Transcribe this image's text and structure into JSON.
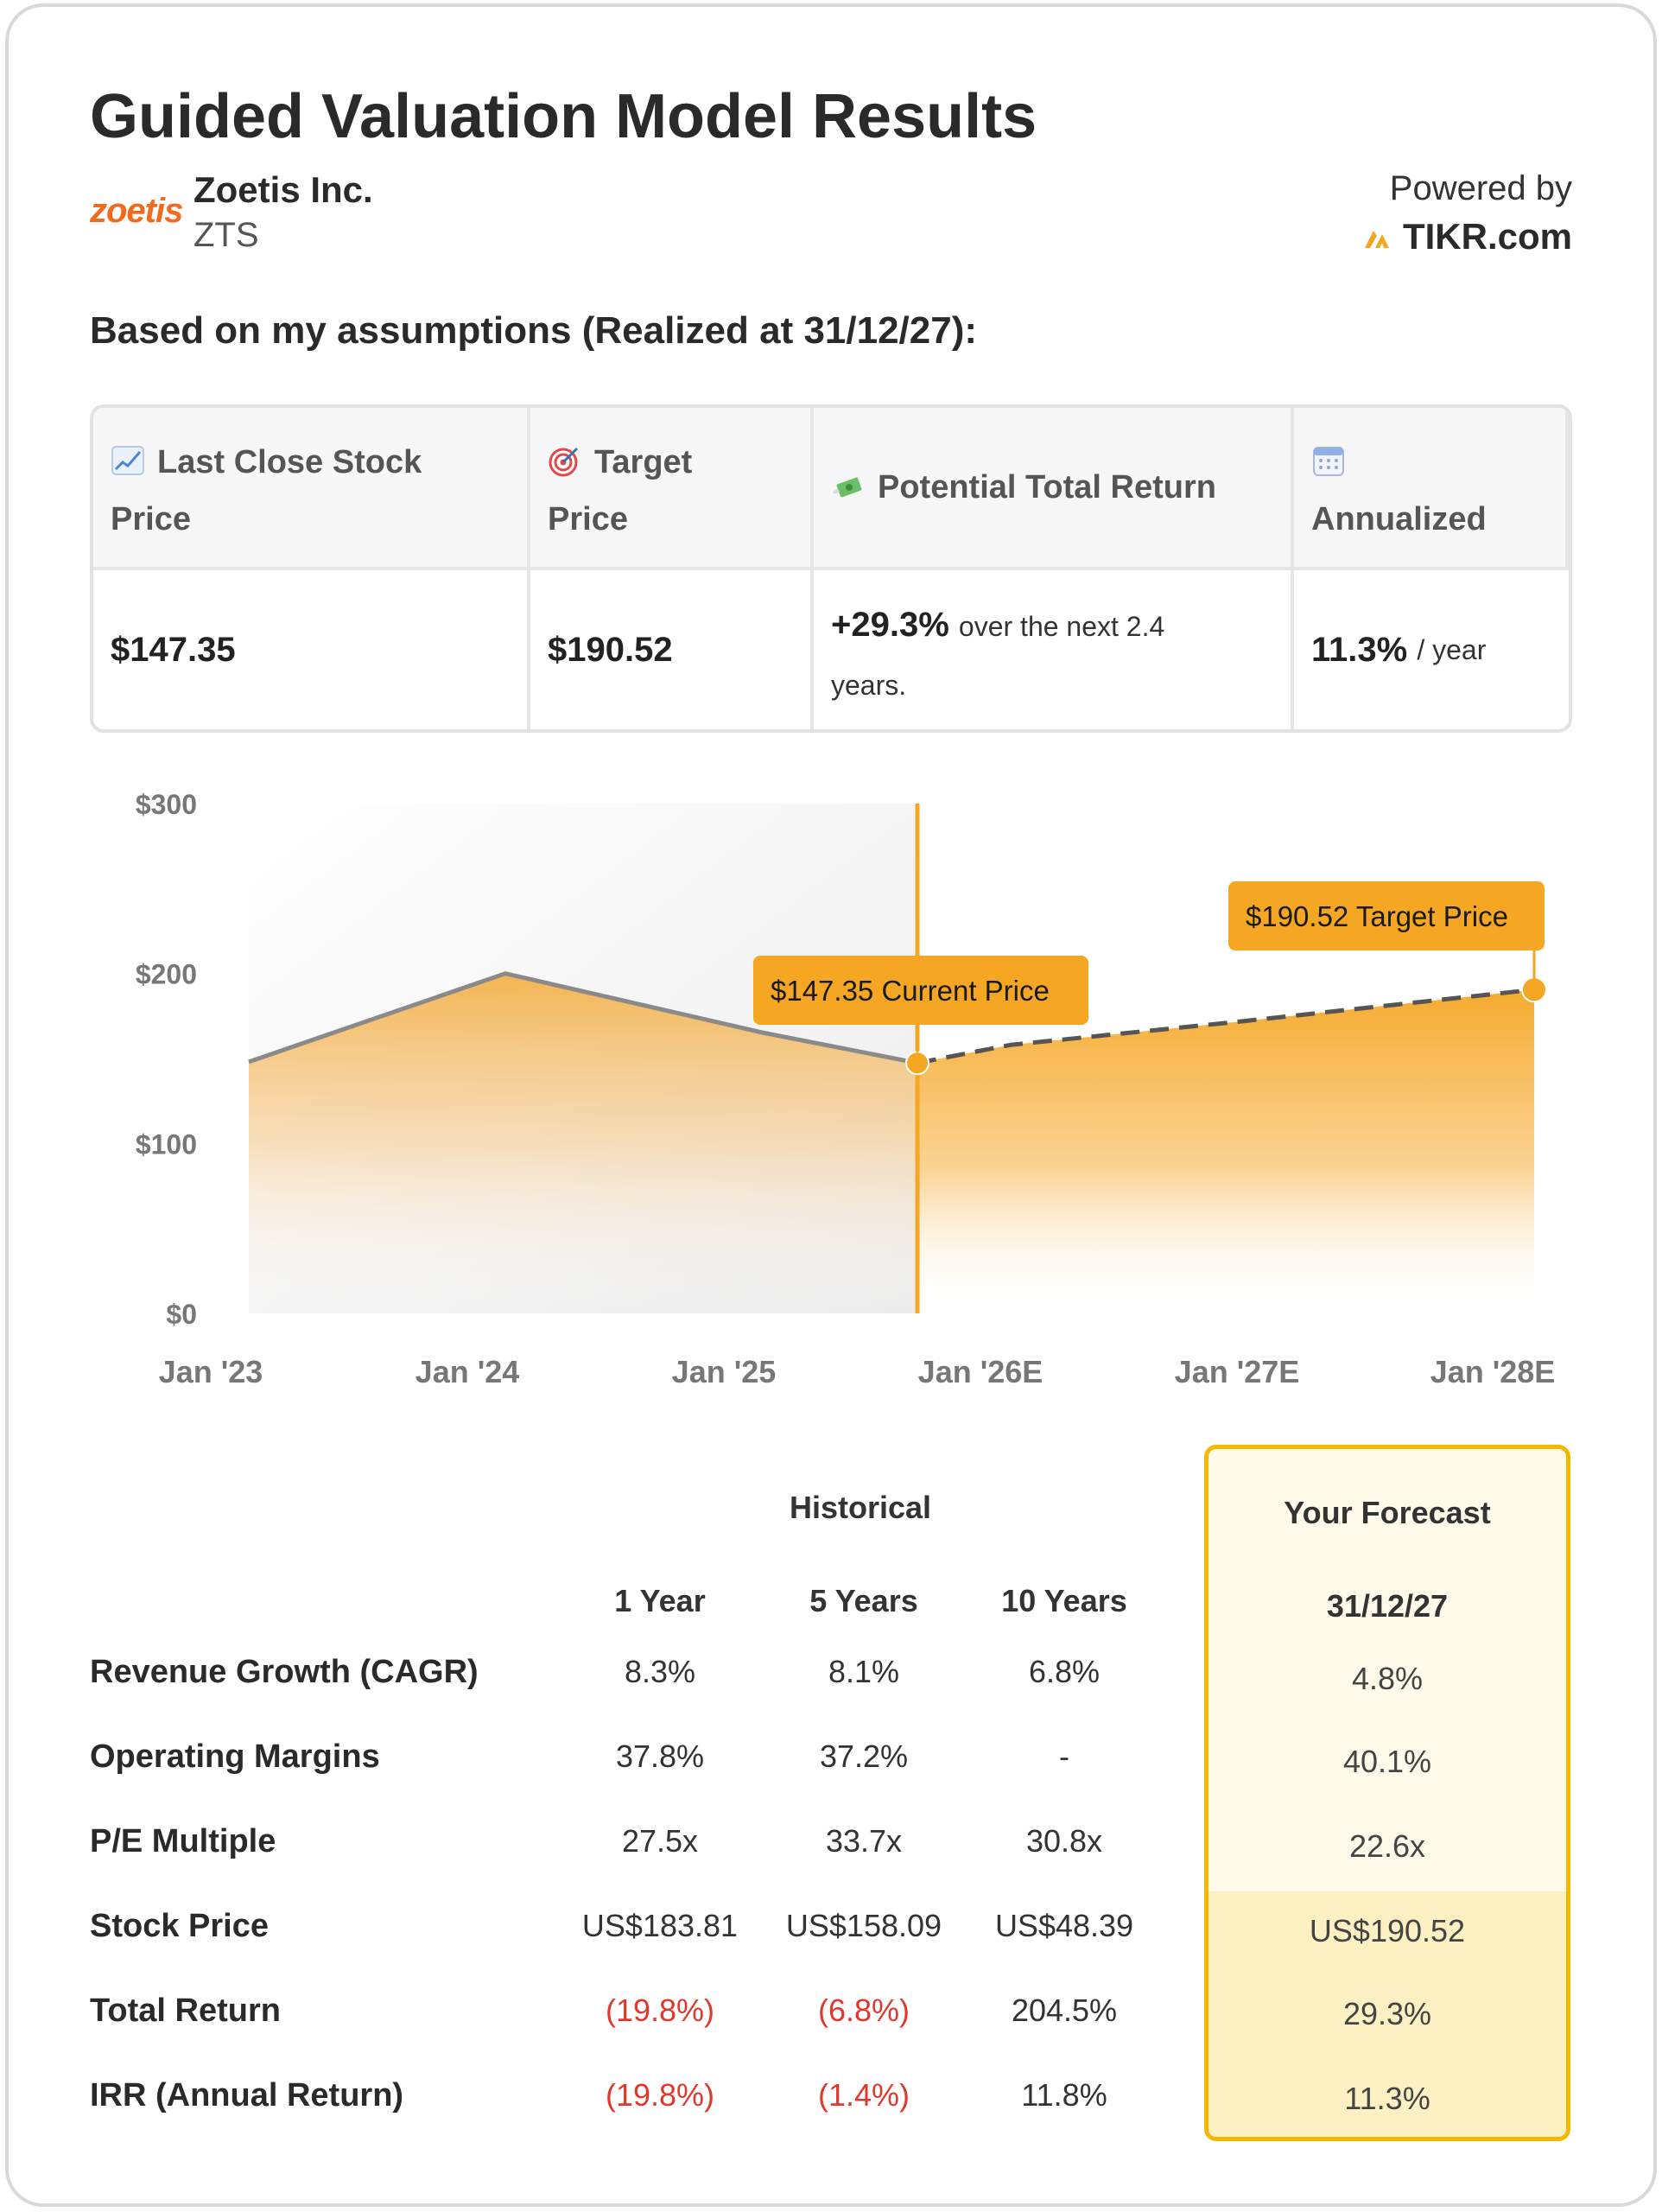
{
  "header": {
    "title": "Guided Valuation Model Results",
    "logo_text": "zoetis",
    "company": "Zoetis Inc.",
    "ticker": "ZTS",
    "powered_by": "Powered by",
    "brand": "TIKR.com"
  },
  "assumptions_heading": "Based on my assumptions (Realized at 31/12/27):",
  "summary": {
    "col1_label_a": "Last Close Stock",
    "col1_label_b": "Price",
    "col2_label_a": "Target",
    "col2_label_b": "Price",
    "col3_label": "Potential Total Return",
    "col4_label": "Annualized",
    "last_close": "$147.35",
    "target": "$190.52",
    "return_value": "+29.3%",
    "return_text_a": "over the next 2.4",
    "return_text_b": "years.",
    "annualized_value": "11.3%",
    "annualized_unit": "/ year",
    "icons": [
      "chart-increasing-icon",
      "target-icon",
      "money-wings-icon",
      "calendar-icon"
    ]
  },
  "chart_data": {
    "type": "area",
    "x_labels": [
      "Jan '23",
      "Jan '24",
      "Jan '25",
      "Jan '26E",
      "Jan '27E",
      "Jan '28E"
    ],
    "y_ticks": [
      "$0",
      "$100",
      "$200",
      "$300"
    ],
    "ylim": [
      0,
      300
    ],
    "historical": [
      {
        "x": "Jan '23",
        "y": 148
      },
      {
        "x": "Jan '24",
        "y": 200
      },
      {
        "x": "Jan '25",
        "y": 165
      },
      {
        "x": "Current",
        "y": 147.35
      }
    ],
    "forecast": [
      {
        "x": "Current",
        "y": 147.35
      },
      {
        "x": "Jan '26E",
        "y": 158
      },
      {
        "x": "Jan '27E",
        "y": 172
      },
      {
        "x": "Jan '28E",
        "y": 190.52
      }
    ],
    "current_label": "$147.35 Current Price",
    "target_label": "$190.52 Target Price",
    "colors": {
      "area": "#f5a623",
      "line": "#8a8a8a",
      "marker": "#f5a623",
      "shade": "#eeeeee"
    }
  },
  "metrics": {
    "historical_label": "Historical",
    "forecast_label": "Your Forecast",
    "forecast_date": "31/12/27",
    "periods": [
      "1 Year",
      "5 Years",
      "10 Years"
    ],
    "rows": [
      {
        "label": "Revenue Growth (CAGR)",
        "values": [
          "8.3%",
          "8.1%",
          "6.8%"
        ],
        "negative": [
          false,
          false,
          false
        ],
        "forecast": "4.8%"
      },
      {
        "label": "Operating Margins",
        "values": [
          "37.8%",
          "37.2%",
          "-"
        ],
        "negative": [
          false,
          false,
          false
        ],
        "forecast": "40.1%"
      },
      {
        "label": "P/E Multiple",
        "values": [
          "27.5x",
          "33.7x",
          "30.8x"
        ],
        "negative": [
          false,
          false,
          false
        ],
        "forecast": "22.6x"
      },
      {
        "label": "Stock Price",
        "values": [
          "US$183.81",
          "US$158.09",
          "US$48.39"
        ],
        "negative": [
          false,
          false,
          false
        ],
        "forecast": "US$190.52"
      },
      {
        "label": "Total Return",
        "values": [
          "(19.8%)",
          "(6.8%)",
          "204.5%"
        ],
        "negative": [
          true,
          true,
          false
        ],
        "forecast": "29.3%"
      },
      {
        "label": "IRR (Annual Return)",
        "values": [
          "(19.8%)",
          "(1.4%)",
          "11.8%"
        ],
        "negative": [
          true,
          true,
          false
        ],
        "forecast": "11.3%"
      }
    ]
  }
}
